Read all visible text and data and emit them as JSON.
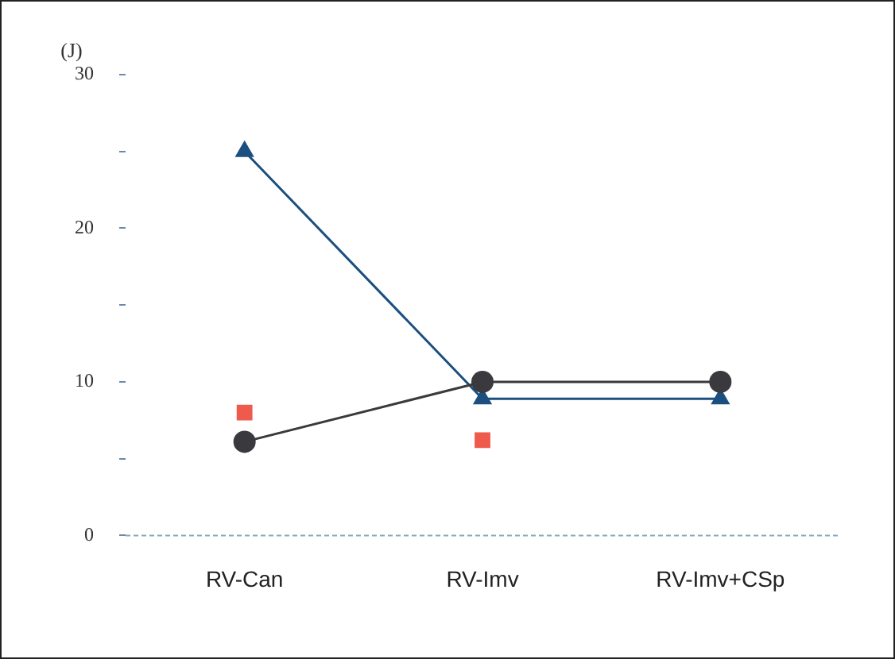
{
  "chart_data": {
    "type": "line",
    "ylabel": "(J)",
    "categories": [
      "RV-Can",
      "RV-Imv",
      "RV-Imv+CSp"
    ],
    "series": [
      {
        "color": "#3a3a3e",
        "marker": "circle",
        "values": [
          6.1,
          10,
          10
        ]
      },
      {
        "color": "#1b4f80",
        "marker": "triangle",
        "values": [
          25,
          8.9,
          8.9
        ]
      },
      {
        "type": "scatter",
        "color": "#ee5a4c",
        "marker": "square",
        "values": [
          8,
          6.2,
          null
        ]
      }
    ],
    "ylim": [
      0,
      30
    ],
    "yticks": [
      0,
      {
        "value": 5,
        "label": null
      },
      10,
      {
        "value": 15,
        "label": null
      },
      20,
      {
        "value": 25,
        "label": null
      },
      30
    ],
    "grid": false,
    "legend": false
  }
}
